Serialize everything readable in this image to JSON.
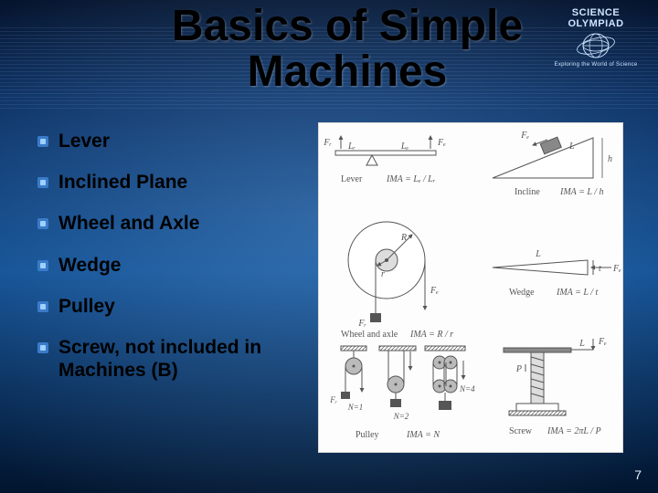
{
  "title": "Basics of Simple Machines",
  "logo": {
    "brand": "SCIENCE OLYMPIAD",
    "tagline": "Exploring the World of Science"
  },
  "bullet_colors": {
    "outer": "#3a7bc8",
    "inner": "#9fd0ff"
  },
  "items": [
    "Lever",
    "Inclined Plane",
    "Wheel and Axle",
    "Wedge",
    "Pulley",
    "Screw, not included in Machines (B)"
  ],
  "figure": {
    "background": "#fdfdfd",
    "stroke": "#555555",
    "text_color": "#555555",
    "font_size": 10,
    "machines": [
      {
        "type": "lever",
        "caption": "Lever",
        "formula": "IMA = Lₑ / Lᵣ",
        "labels": {
          "left_force": "Fᵣ",
          "right_force": "Fₑ",
          "left_arm": "Lᵣ",
          "right_arm": "Lₑ"
        }
      },
      {
        "type": "incline",
        "caption": "Incline",
        "formula": "IMA = L / h",
        "labels": {
          "slope": "L",
          "height": "h",
          "force": "Fₑ"
        }
      },
      {
        "type": "wheel-and-axle",
        "caption": "Wheel and axle",
        "formula": "IMA = R / r",
        "labels": {
          "wheel_radius": "R",
          "axle_radius": "r",
          "pull": "Fₑ",
          "load": "Fᵣ"
        }
      },
      {
        "type": "wedge",
        "caption": "Wedge",
        "formula": "IMA = L / t",
        "labels": {
          "length": "L",
          "thickness": "t",
          "force": "Fₑ"
        }
      },
      {
        "type": "pulley",
        "caption": "Pulley",
        "formula": "IMA = N",
        "variants": [
          {
            "N": 1,
            "load": "Fᵣ"
          },
          {
            "N": 2
          },
          {
            "N": 4
          }
        ]
      },
      {
        "type": "screw",
        "caption": "Screw",
        "formula": "IMA = 2πL / P",
        "labels": {
          "lever": "L",
          "pitch": "P",
          "force": "Fₑ"
        }
      }
    ]
  },
  "page_number": "7"
}
